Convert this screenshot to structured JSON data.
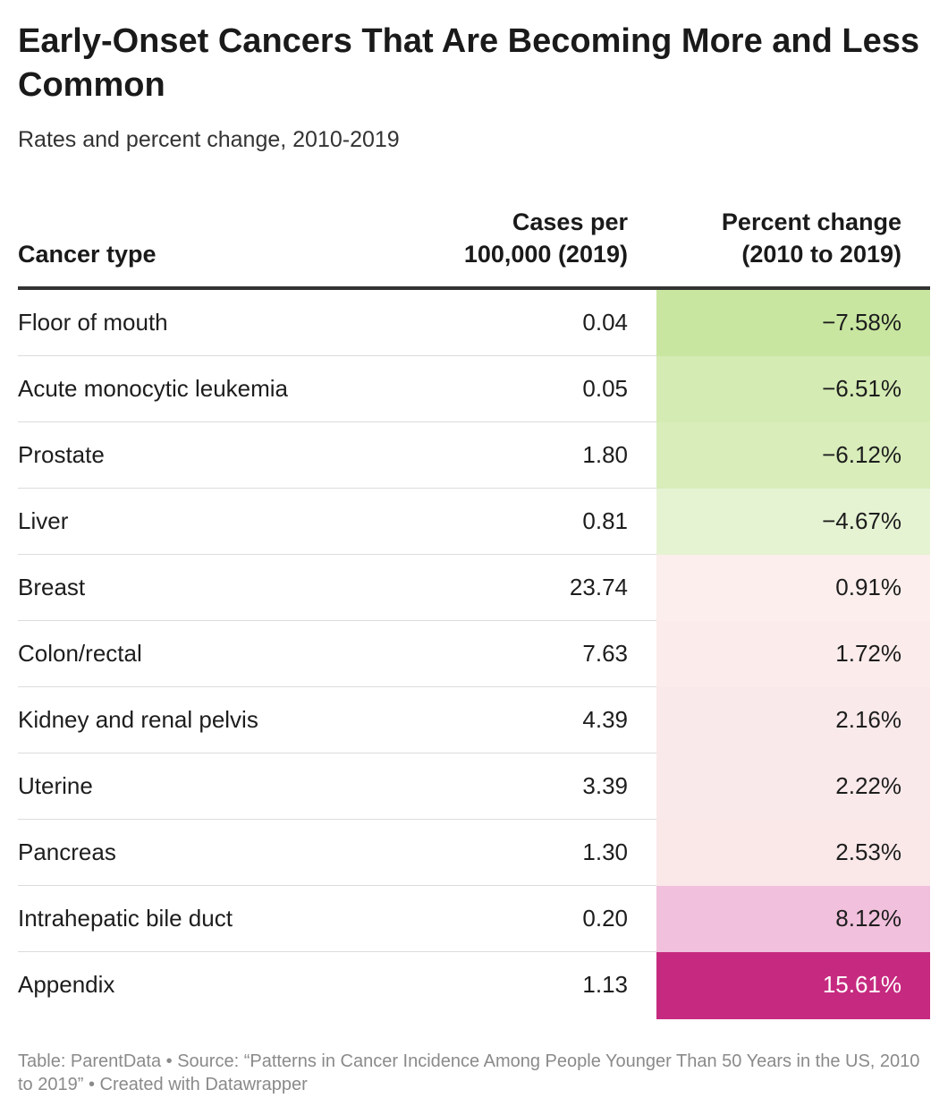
{
  "chart_data": {
    "type": "table",
    "title": "Early-Onset Cancers That Are Becoming More and Less Common",
    "subtitle": "Rates and percent change, 2010-2019",
    "columns": {
      "type": "Cancer type",
      "cases_line1": "Cases per",
      "cases_line2": "100,000 (2019)",
      "pct_line1": "Percent change",
      "pct_line2": "(2010 to 2019)"
    },
    "rows": [
      {
        "type": "Floor of mouth",
        "cases": "0.04",
        "pct": "−7.58%",
        "bg": "#c8e6a0",
        "fg": "#1d1d1d"
      },
      {
        "type": "Acute monocytic leukemia",
        "cases": "0.05",
        "pct": "−6.51%",
        "bg": "#d4ebb3",
        "fg": "#1d1d1d"
      },
      {
        "type": "Prostate",
        "cases": "1.80",
        "pct": "−6.12%",
        "bg": "#d8edba",
        "fg": "#1d1d1d"
      },
      {
        "type": "Liver",
        "cases": "0.81",
        "pct": "−4.67%",
        "bg": "#e6f3d3",
        "fg": "#1d1d1d"
      },
      {
        "type": "Breast",
        "cases": "23.74",
        "pct": "0.91%",
        "bg": "#fbeeec",
        "fg": "#1d1d1d"
      },
      {
        "type": "Colon/rectal",
        "cases": "7.63",
        "pct": "1.72%",
        "bg": "#fbebeb",
        "fg": "#1d1d1d"
      },
      {
        "type": "Kidney and renal pelvis",
        "cases": "4.39",
        "pct": "2.16%",
        "bg": "#fae9ea",
        "fg": "#1d1d1d"
      },
      {
        "type": "Uterine",
        "cases": "3.39",
        "pct": "2.22%",
        "bg": "#fae9ea",
        "fg": "#1d1d1d"
      },
      {
        "type": "Pancreas",
        "cases": "1.30",
        "pct": "2.53%",
        "bg": "#fae8e9",
        "fg": "#1d1d1d"
      },
      {
        "type": "Intrahepatic bile duct",
        "cases": "0.20",
        "pct": "8.12%",
        "bg": "#f1c0dc",
        "fg": "#1d1d1d"
      },
      {
        "type": "Appendix",
        "cases": "1.13",
        "pct": "15.61%",
        "bg": "#c62a80",
        "fg": "#ffffff"
      }
    ]
  },
  "footer": "Table: ParentData • Source: “Patterns in Cancer Incidence Among People Younger Than 50 Years in the US, 2010 to 2019” • Created with Datawrapper"
}
